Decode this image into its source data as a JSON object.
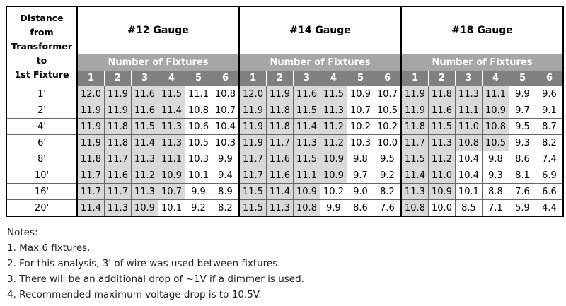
{
  "table": {
    "corner": [
      "Distance from",
      "Transformer",
      "to",
      "1st Fixture"
    ],
    "groups": [
      {
        "title": "#12 Gauge",
        "subtitle": "Number of Fixtures",
        "columns": [
          1,
          2,
          3,
          4,
          5,
          6
        ]
      },
      {
        "title": "#14 Gauge",
        "subtitle": "Number of Fixtures",
        "columns": [
          1,
          2,
          3,
          4,
          5,
          6
        ]
      },
      {
        "title": "#18 Gauge",
        "subtitle": "Number of Fixtures",
        "columns": [
          1,
          2,
          3,
          4,
          5,
          6
        ]
      }
    ],
    "rows": [
      {
        "distance": "1'",
        "values": [
          "12.0",
          "11.9",
          "11.6",
          "11.5",
          "11.1",
          "10.8",
          "12.0",
          "11.9",
          "11.6",
          "11.5",
          "10.9",
          "10.7",
          "11.9",
          "11.8",
          "11.3",
          "11.1",
          "9.9",
          "9.6"
        ]
      },
      {
        "distance": "2'",
        "values": [
          "11.9",
          "11.9",
          "11.6",
          "11.4",
          "10.8",
          "10.7",
          "11.9",
          "11.8",
          "11.5",
          "11.3",
          "10.7",
          "10.5",
          "11.9",
          "11.6",
          "11.1",
          "10.9",
          "9.7",
          "9.1"
        ]
      },
      {
        "distance": "4'",
        "values": [
          "11.9",
          "11.8",
          "11.5",
          "11.3",
          "10.6",
          "10.4",
          "11.9",
          "11.8",
          "11.4",
          "11.2",
          "10.2",
          "10.2",
          "11.8",
          "11.5",
          "11.0",
          "10.8",
          "9.5",
          "8.7"
        ]
      },
      {
        "distance": "6'",
        "values": [
          "11.9",
          "11.8",
          "11.4",
          "11.3",
          "10.5",
          "10.3",
          "11.9",
          "11.7",
          "11.3",
          "11.2",
          "10.3",
          "10.0",
          "11.7",
          "11.3",
          "10.8",
          "10.5",
          "9.3",
          "8.2"
        ]
      },
      {
        "distance": "8'",
        "values": [
          "11.8",
          "11.7",
          "11.3",
          "11.1",
          "10.3",
          "9.9",
          "11.7",
          "11.6",
          "11.5",
          "10.9",
          "9.8",
          "9.5",
          "11.5",
          "11.2",
          "10.4",
          "9.8",
          "8.6",
          "7.4"
        ]
      },
      {
        "distance": "10'",
        "values": [
          "11.7",
          "11.6",
          "11.2",
          "10.9",
          "10.1",
          "9.4",
          "11.7",
          "11.6",
          "11.1",
          "10.9",
          "9.7",
          "9.2",
          "11.4",
          "11.0",
          "10.4",
          "9.3",
          "8.1",
          "6.9"
        ]
      },
      {
        "distance": "16'",
        "values": [
          "11.7",
          "11.7",
          "11.3",
          "10.7",
          "9.9",
          "8.9",
          "11.5",
          "11.4",
          "10.9",
          "10.2",
          "9.0",
          "8.2",
          "11.3",
          "10.9",
          "10.1",
          "8.8",
          "7.6",
          "6.6"
        ]
      },
      {
        "distance": "20'",
        "values": [
          "11.4",
          "11.3",
          "10.9",
          "10.1",
          "9.2",
          "8.2",
          "11.5",
          "11.3",
          "10.8",
          "9.9",
          "8.6",
          "7.6",
          "10.8",
          "10.0",
          "8.5",
          "7.1",
          "5.9",
          "4.4"
        ]
      }
    ]
  },
  "notes": {
    "heading": "Notes:",
    "items": [
      "1. Max 6 fixtures.",
      "2. For this analysis, 3' of wire was used between fixtures.",
      "3. There will be an additional drop of ~1V if a dimmer is used.",
      "4. Recommended maximum voltage drop is to 10.5V."
    ]
  }
}
